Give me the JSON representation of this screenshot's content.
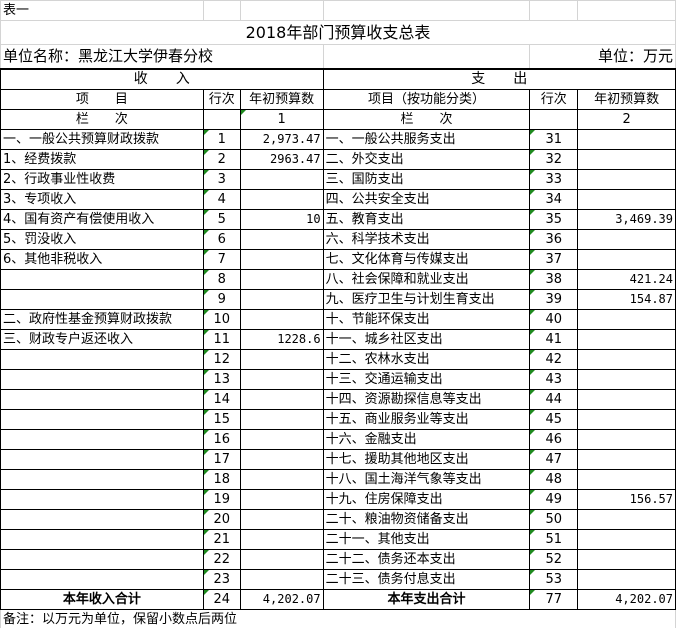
{
  "sheet_label": "表一",
  "title": "2018年部门预算收支总表",
  "unit_name": "单位名称：黑龙江大学伊春分校",
  "unit": "单位：万元",
  "income_header": "收　　入",
  "expense_header": "支　　出",
  "col_headers": {
    "item": "项　　目",
    "row_no": "行次",
    "amount": "年初预算数",
    "exp_item": "项目（按功能分类）",
    "exp_row_no": "行次",
    "exp_amount": "年初预算数"
  },
  "lanci": {
    "label": "栏　　次",
    "income_col": "1",
    "expense_col": "2"
  },
  "rows": [
    {
      "item": "一、一般公共预算财政拨款",
      "no": "1",
      "amount": "2,973.47",
      "exp_item": "一、一般公共服务支出",
      "exp_no": "31",
      "exp_amount": ""
    },
    {
      "item": "1、经费拨款",
      "no": "2",
      "amount": "2963.47",
      "exp_item": "二、外交支出",
      "exp_no": "32",
      "exp_amount": ""
    },
    {
      "item": "2、行政事业性收费",
      "no": "3",
      "amount": "",
      "exp_item": "三、国防支出",
      "exp_no": "33",
      "exp_amount": ""
    },
    {
      "item": "3、专项收入",
      "no": "4",
      "amount": "",
      "exp_item": "四、公共安全支出",
      "exp_no": "34",
      "exp_amount": ""
    },
    {
      "item": "4、国有资产有偿使用收入",
      "no": "5",
      "amount": "10",
      "exp_item": "五、教育支出",
      "exp_no": "35",
      "exp_amount": "3,469.39"
    },
    {
      "item": "5、罚没收入",
      "no": "6",
      "amount": "",
      "exp_item": "六、科学技术支出",
      "exp_no": "36",
      "exp_amount": ""
    },
    {
      "item": "6、其他非税收入",
      "no": "7",
      "amount": "",
      "exp_item": "七、文化体育与传媒支出",
      "exp_no": "37",
      "exp_amount": ""
    },
    {
      "item": "",
      "no": "8",
      "amount": "",
      "exp_item": "八、社会保障和就业支出",
      "exp_no": "38",
      "exp_amount": "421.24"
    },
    {
      "item": "",
      "no": "9",
      "amount": "",
      "exp_item": "九、医疗卫生与计划生育支出",
      "exp_no": "39",
      "exp_amount": "154.87"
    },
    {
      "item": "二、政府性基金预算财政拨款",
      "no": "10",
      "amount": "",
      "exp_item": "十、节能环保支出",
      "exp_no": "40",
      "exp_amount": ""
    },
    {
      "item": "三、财政专户返还收入",
      "no": "11",
      "amount": "1228.6",
      "exp_item": "十一、城乡社区支出",
      "exp_no": "41",
      "exp_amount": ""
    },
    {
      "item": "",
      "no": "12",
      "amount": "",
      "exp_item": "十二、农林水支出",
      "exp_no": "42",
      "exp_amount": ""
    },
    {
      "item": "",
      "no": "13",
      "amount": "",
      "exp_item": "十三、交通运输支出",
      "exp_no": "43",
      "exp_amount": ""
    },
    {
      "item": "",
      "no": "14",
      "amount": "",
      "exp_item": "十四、资源勘探信息等支出",
      "exp_no": "44",
      "exp_amount": ""
    },
    {
      "item": "",
      "no": "15",
      "amount": "",
      "exp_item": "十五、商业服务业等支出",
      "exp_no": "45",
      "exp_amount": ""
    },
    {
      "item": "",
      "no": "16",
      "amount": "",
      "exp_item": "十六、金融支出",
      "exp_no": "46",
      "exp_amount": ""
    },
    {
      "item": "",
      "no": "17",
      "amount": "",
      "exp_item": "十七、援助其他地区支出",
      "exp_no": "47",
      "exp_amount": ""
    },
    {
      "item": "",
      "no": "18",
      "amount": "",
      "exp_item": "十八、国土海洋气象等支出",
      "exp_no": "48",
      "exp_amount": ""
    },
    {
      "item": "",
      "no": "19",
      "amount": "",
      "exp_item": "十九、住房保障支出",
      "exp_no": "49",
      "exp_amount": "156.57"
    },
    {
      "item": "",
      "no": "20",
      "amount": "",
      "exp_item": "二十、粮油物资储备支出",
      "exp_no": "50",
      "exp_amount": ""
    },
    {
      "item": "",
      "no": "21",
      "amount": "",
      "exp_item": "二十一、其他支出",
      "exp_no": "51",
      "exp_amount": ""
    },
    {
      "item": "",
      "no": "22",
      "amount": "",
      "exp_item": "二十二、债务还本支出",
      "exp_no": "52",
      "exp_amount": ""
    },
    {
      "item": "",
      "no": "23",
      "amount": "",
      "exp_item": "二十三、债务付息支出",
      "exp_no": "53",
      "exp_amount": ""
    }
  ],
  "total": {
    "item": "本年收入合计",
    "no": "24",
    "amount": "4,202.07",
    "exp_item": "本年支出合计",
    "exp_no": "77",
    "exp_amount": "4,202.07"
  },
  "note": "备注：以万元为单位，保留小数点后两位"
}
